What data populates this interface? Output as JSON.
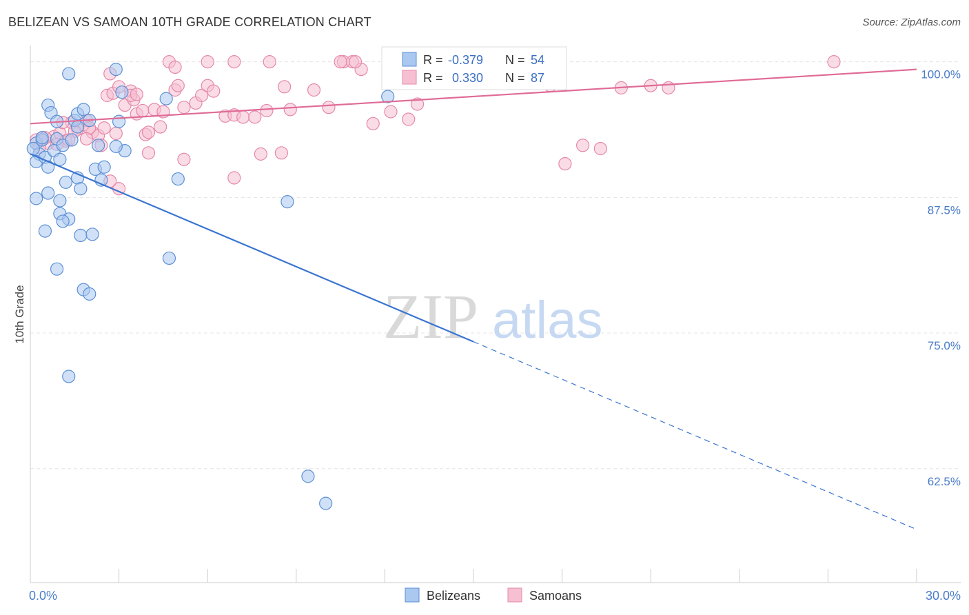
{
  "title": "BELIZEAN VS SAMOAN 10TH GRADE CORRELATION CHART",
  "source": "Source: ZipAtlas.com",
  "watermark": {
    "zip": "ZIP",
    "atlas": "atlas"
  },
  "colors": {
    "blue_fill": "#aac8f0",
    "blue_stroke": "#5b8fd4",
    "blue_line": "#3a74d0",
    "pink_fill": "#f6bfd2",
    "pink_stroke": "#e688a8",
    "pink_line": "#e06b96",
    "tick_text": "#4a7cc9",
    "grid": "#e4e4e4"
  },
  "legend_top": [
    {
      "r_label": "R =",
      "r_value": "-0.379",
      "n_label": "N =",
      "n_value": "54"
    },
    {
      "r_label": "R =",
      "r_value": "0.330",
      "n_label": "N =",
      "n_value": "87"
    }
  ],
  "chart_data": {
    "type": "scatter",
    "ylabel": "10th Grade",
    "xlim": [
      0,
      30
    ],
    "ylim": [
      52,
      101.5
    ],
    "x_ticks": [
      "0.0%",
      "30.0%"
    ],
    "y_ticks": [
      {
        "value": 100,
        "label": "100.0%"
      },
      {
        "value": 87.5,
        "label": "87.5%"
      },
      {
        "value": 75,
        "label": "75.0%"
      },
      {
        "value": 62.5,
        "label": "62.5%"
      }
    ],
    "legend_position": "top-center",
    "series": [
      {
        "name": "Belizeans",
        "color": "#5b8fd4",
        "trend": {
          "x1": 0,
          "y1": 91.5,
          "x2": 15,
          "y2": 74.2,
          "dash_to_x": 30,
          "dash_to_y": 56.9
        },
        "points": [
          [
            0.2,
            92.5
          ],
          [
            0.3,
            91.5
          ],
          [
            0.2,
            90.8
          ],
          [
            0.5,
            91.2
          ],
          [
            0.4,
            92.8
          ],
          [
            0.6,
            90.3
          ],
          [
            0.8,
            91.8
          ],
          [
            1.0,
            91.0
          ],
          [
            0.9,
            92.9
          ],
          [
            1.1,
            92.3
          ],
          [
            1.4,
            92.8
          ],
          [
            0.6,
            96.0
          ],
          [
            0.7,
            95.3
          ],
          [
            0.9,
            94.5
          ],
          [
            1.5,
            94.6
          ],
          [
            1.6,
            95.2
          ],
          [
            1.6,
            94.0
          ],
          [
            1.8,
            95.6
          ],
          [
            2.0,
            94.6
          ],
          [
            1.3,
            98.9
          ],
          [
            2.9,
            99.3
          ],
          [
            3.1,
            97.2
          ],
          [
            4.6,
            96.6
          ],
          [
            12.1,
            96.8
          ],
          [
            3.0,
            94.5
          ],
          [
            2.3,
            92.3
          ],
          [
            3.2,
            91.8
          ],
          [
            2.2,
            90.1
          ],
          [
            2.5,
            90.3
          ],
          [
            2.4,
            89.1
          ],
          [
            1.2,
            88.9
          ],
          [
            1.6,
            89.3
          ],
          [
            1.7,
            88.3
          ],
          [
            0.6,
            87.9
          ],
          [
            0.2,
            87.4
          ],
          [
            1.0,
            87.2
          ],
          [
            1.0,
            86.0
          ],
          [
            1.3,
            85.5
          ],
          [
            1.1,
            85.3
          ],
          [
            0.5,
            84.4
          ],
          [
            1.7,
            84.0
          ],
          [
            2.1,
            84.1
          ],
          [
            5.0,
            89.2
          ],
          [
            4.7,
            81.9
          ],
          [
            0.9,
            80.9
          ],
          [
            1.8,
            79.0
          ],
          [
            2.0,
            78.6
          ],
          [
            8.7,
            87.1
          ],
          [
            1.3,
            71.0
          ],
          [
            9.4,
            61.8
          ],
          [
            10.0,
            59.3
          ],
          [
            0.1,
            92.0
          ],
          [
            0.4,
            93.0
          ],
          [
            2.9,
            92.2
          ]
        ]
      },
      {
        "name": "Samoans",
        "color": "#e688a8",
        "trend": {
          "x1": 0,
          "y1": 94.3,
          "x2": 30,
          "y2": 99.3
        },
        "points": [
          [
            0.2,
            92.8
          ],
          [
            0.4,
            93.0
          ],
          [
            0.6,
            92.5
          ],
          [
            0.8,
            93.1
          ],
          [
            1.0,
            93.4
          ],
          [
            1.2,
            92.7
          ],
          [
            0.3,
            92.1
          ],
          [
            1.4,
            94.4
          ],
          [
            1.6,
            93.8
          ],
          [
            1.8,
            94.2
          ],
          [
            1.9,
            94.6
          ],
          [
            2.1,
            93.5
          ],
          [
            2.3,
            93.2
          ],
          [
            2.5,
            93.9
          ],
          [
            2.4,
            92.3
          ],
          [
            2.6,
            96.9
          ],
          [
            2.8,
            97.1
          ],
          [
            3.0,
            97.7
          ],
          [
            3.2,
            96.0
          ],
          [
            3.4,
            97.3
          ],
          [
            3.5,
            96.5
          ],
          [
            3.6,
            95.2
          ],
          [
            3.8,
            95.5
          ],
          [
            3.9,
            93.3
          ],
          [
            4.0,
            91.6
          ],
          [
            4.2,
            95.6
          ],
          [
            4.5,
            95.4
          ],
          [
            4.9,
            97.4
          ],
          [
            5.0,
            97.8
          ],
          [
            5.2,
            95.8
          ],
          [
            5.6,
            96.2
          ],
          [
            5.8,
            96.9
          ],
          [
            6.0,
            97.8
          ],
          [
            6.2,
            97.3
          ],
          [
            6.6,
            95.0
          ],
          [
            6.9,
            95.1
          ],
          [
            7.2,
            94.9
          ],
          [
            7.6,
            94.9
          ],
          [
            8.0,
            95.5
          ],
          [
            8.6,
            97.7
          ],
          [
            8.8,
            95.6
          ],
          [
            9.6,
            97.4
          ],
          [
            10.1,
            95.8
          ],
          [
            10.6,
            100.0
          ],
          [
            10.9,
            100.0
          ],
          [
            11.2,
            99.3
          ],
          [
            11.6,
            94.3
          ],
          [
            12.2,
            95.4
          ],
          [
            12.8,
            94.7
          ],
          [
            13.1,
            96.1
          ],
          [
            14.5,
            99.6
          ],
          [
            15.6,
            99.8
          ],
          [
            17.6,
            97.8
          ],
          [
            3.0,
            88.3
          ],
          [
            6.9,
            89.3
          ],
          [
            7.8,
            91.5
          ],
          [
            8.5,
            91.6
          ],
          [
            5.2,
            91.0
          ],
          [
            4.7,
            100.0
          ],
          [
            4.9,
            99.5
          ],
          [
            6.0,
            100.0
          ],
          [
            6.9,
            100.0
          ],
          [
            8.1,
            100.0
          ],
          [
            10.5,
            100.0
          ],
          [
            11.0,
            100.0
          ],
          [
            14.7,
            100.0
          ],
          [
            27.2,
            100.0
          ],
          [
            2.7,
            98.9
          ],
          [
            3.4,
            96.9
          ],
          [
            3.6,
            97.0
          ],
          [
            4.4,
            94.0
          ],
          [
            4.0,
            93.5
          ],
          [
            18.7,
            92.3
          ],
          [
            19.3,
            92.0
          ],
          [
            18.1,
            90.6
          ],
          [
            20.0,
            97.6
          ],
          [
            21.0,
            97.8
          ],
          [
            21.6,
            97.6
          ],
          [
            2.0,
            93.9
          ],
          [
            2.9,
            93.4
          ],
          [
            1.1,
            94.4
          ],
          [
            1.5,
            93.6
          ],
          [
            1.9,
            92.9
          ],
          [
            0.5,
            93.0
          ],
          [
            0.9,
            92.4
          ],
          [
            1.3,
            92.8
          ],
          [
            2.7,
            89.0
          ]
        ]
      }
    ]
  }
}
